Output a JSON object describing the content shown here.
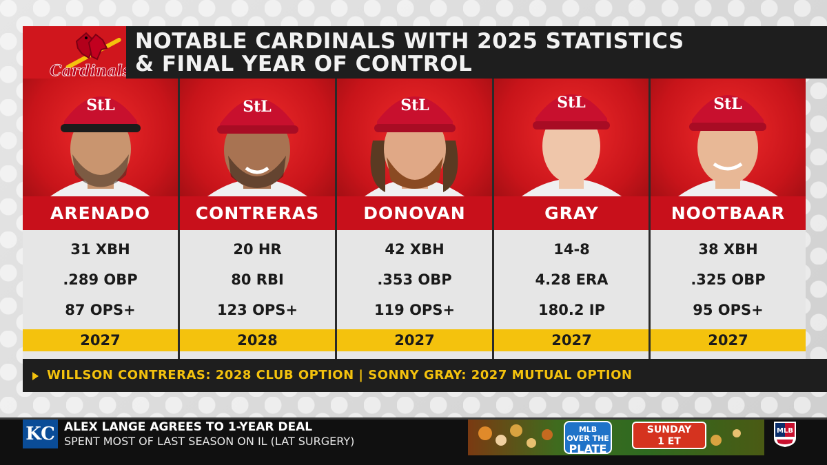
{
  "header": {
    "title_line1": "Notable Cardinals with 2025 Statistics",
    "title_line2": "& Final Year of Control",
    "team_logo": "cardinals-logo",
    "colors": {
      "red": "#c8101b",
      "gold": "#f4c20d",
      "dark": "#1e1e1e"
    }
  },
  "players": [
    {
      "name": "ARENADO",
      "stats": [
        "31 XBH",
        ".289 OBP",
        "87 OPS+"
      ],
      "year": "2027"
    },
    {
      "name": "CONTRERAS",
      "stats": [
        "20 HR",
        "80 RBI",
        "123 OPS+"
      ],
      "year": "2028"
    },
    {
      "name": "DONOVAN",
      "stats": [
        "42 XBH",
        ".353 OBP",
        "119 OPS+"
      ],
      "year": "2027"
    },
    {
      "name": "GRAY",
      "stats": [
        "14-8",
        "4.28 ERA",
        "180.2 IP"
      ],
      "year": "2027"
    },
    {
      "name": "NOOTBAAR",
      "stats": [
        "38 XBH",
        ".325 OBP",
        "95 OPS+"
      ],
      "year": "2027"
    }
  ],
  "note": "WILLSON CONTRERAS: 2028 CLUB OPTION | SONNY GRAY: 2027 MUTUAL OPTION",
  "ticker": {
    "team_logo_text": "KC",
    "headline": "ALEX LANGE AGREES TO 1-YEAR DEAL",
    "subline": "SPENT MOST OF LAST SEASON ON IL (LAT SURGERY)",
    "promo_show_small": "MLB",
    "promo_show_line1": "OVER THE",
    "promo_show_line2": "PLATE",
    "promo_day": "SUNDAY",
    "promo_time": "1 ET",
    "network_logo": "mlb-network-logo"
  }
}
